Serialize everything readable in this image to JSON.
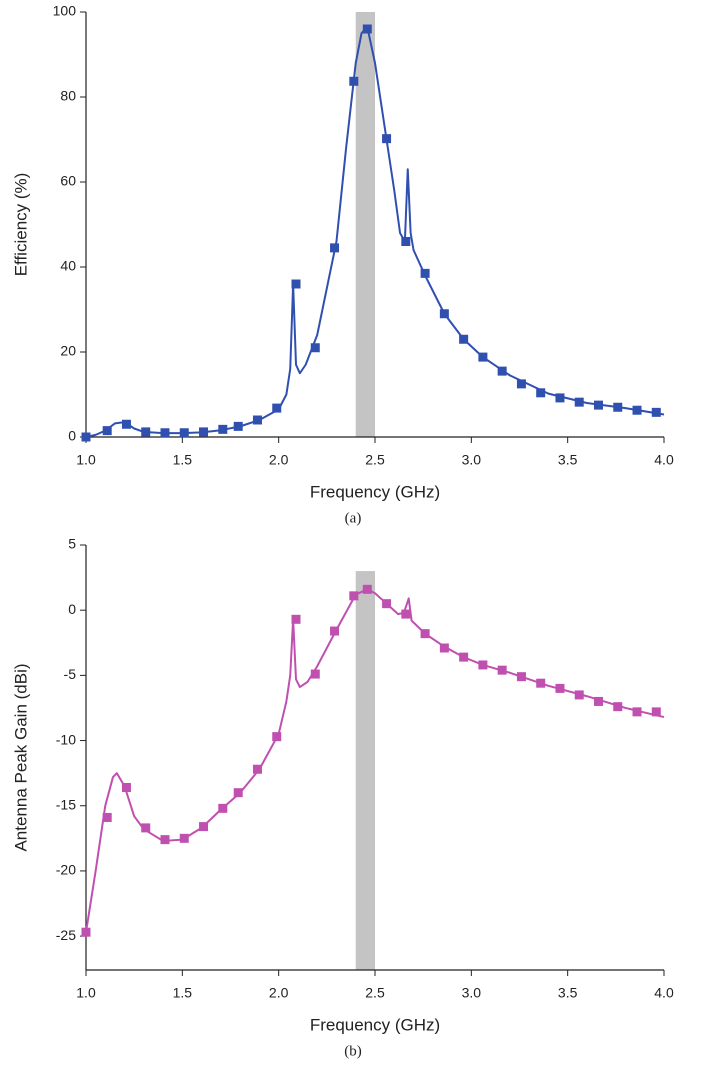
{
  "chart_data": [
    {
      "type": "line",
      "xlabel": "Frequency (GHz)",
      "ylabel": "Efficiency (%)",
      "caption": "(a)",
      "xlim": [
        1.0,
        4.0
      ],
      "ylim": [
        0,
        100
      ],
      "xticks": [
        {
          "value": 1.0,
          "label": "1.0"
        },
        {
          "value": 1.5,
          "label": "1.5"
        },
        {
          "value": 2.0,
          "label": "2.0"
        },
        {
          "value": 2.5,
          "label": "2.5"
        },
        {
          "value": 3.0,
          "label": "3.0"
        },
        {
          "value": 3.5,
          "label": "3.5"
        },
        {
          "value": 4.0,
          "label": "4.0"
        }
      ],
      "yticks": [
        0,
        20,
        40,
        60,
        80,
        100
      ],
      "highlight_x": [
        2.4,
        2.5
      ],
      "highlight_y": [
        0,
        100
      ],
      "highlight_color": "#c4c4c4",
      "series": [
        {
          "style": "line",
          "color": "#3050b0",
          "x": [
            1.0,
            1.05,
            1.1,
            1.15,
            1.2,
            1.25,
            1.3,
            1.4,
            1.5,
            1.6,
            1.7,
            1.8,
            1.9,
            2.0,
            2.04,
            2.06,
            2.075,
            2.09,
            2.11,
            2.14,
            2.2,
            2.3,
            2.35,
            2.4,
            2.43,
            2.46,
            2.5,
            2.56,
            2.6,
            2.63,
            2.655,
            2.67,
            2.685,
            2.7,
            2.76,
            2.86,
            2.96,
            3.06,
            3.2,
            3.4,
            3.6,
            3.8,
            4.0
          ],
          "values": [
            0,
            0.5,
            1.5,
            3.2,
            3.5,
            2,
            1.2,
            0.9,
            0.9,
            1.1,
            1.6,
            2.5,
            4,
            6.5,
            10,
            16,
            36,
            17,
            15,
            17,
            24,
            46,
            68,
            88,
            95,
            96.5,
            88,
            70,
            58,
            48,
            46,
            63,
            48,
            44,
            38,
            29,
            23,
            18.8,
            14.5,
            10.2,
            8,
            6.8,
            5.3
          ]
        },
        {
          "style": "markers",
          "color": "#3050b0",
          "x": [
            1.0,
            1.11,
            1.21,
            1.31,
            1.41,
            1.51,
            1.61,
            1.71,
            1.79,
            1.89,
            1.99,
            2.09,
            2.19,
            2.29,
            2.39,
            2.46,
            2.56,
            2.66,
            2.76,
            2.86,
            2.96,
            3.06,
            3.16,
            3.26,
            3.36,
            3.46,
            3.56,
            3.66,
            3.76,
            3.86,
            3.96
          ],
          "values": [
            0,
            1.5,
            3,
            1.2,
            1,
            1,
            1.2,
            1.8,
            2.5,
            4,
            6.8,
            36,
            21,
            44.5,
            83.7,
            96,
            70.2,
            46,
            38.5,
            29,
            23,
            18.8,
            15.5,
            12.5,
            10.4,
            9.2,
            8.2,
            7.5,
            7,
            6.3,
            5.8
          ]
        }
      ]
    },
    {
      "type": "line",
      "xlabel": "Frequency (GHz)",
      "ylabel": "Antenna Peak Gain (dBi)",
      "caption": "(b)",
      "xlim": [
        1.0,
        4.0
      ],
      "ylim": [
        -27.6,
        5
      ],
      "xticks": [
        {
          "value": 1.0,
          "label": "1.0"
        },
        {
          "value": 1.5,
          "label": "1.5"
        },
        {
          "value": 2.0,
          "label": "2.0"
        },
        {
          "value": 2.5,
          "label": "2.5"
        },
        {
          "value": 3.0,
          "label": "3.0"
        },
        {
          "value": 3.5,
          "label": "3.5"
        },
        {
          "value": 4.0,
          "label": "4.0"
        }
      ],
      "yticks": [
        5,
        0,
        -5,
        -10,
        -15,
        -20,
        -25
      ],
      "highlight_x": [
        2.4,
        2.5
      ],
      "highlight_y": [
        -27.6,
        3
      ],
      "highlight_color": "#c4c4c4",
      "series": [
        {
          "style": "line",
          "color": "#c050b0",
          "x": [
            1.0,
            1.05,
            1.1,
            1.14,
            1.16,
            1.2,
            1.25,
            1.3,
            1.4,
            1.5,
            1.6,
            1.7,
            1.8,
            1.9,
            2.0,
            2.04,
            2.06,
            2.075,
            2.09,
            2.11,
            2.15,
            2.2,
            2.3,
            2.4,
            2.46,
            2.5,
            2.56,
            2.62,
            2.65,
            2.675,
            2.69,
            2.76,
            2.86,
            2.96,
            3.06,
            3.2,
            3.4,
            3.6,
            3.8,
            4.0
          ],
          "values": [
            -24.7,
            -20,
            -15,
            -12.8,
            -12.5,
            -13.5,
            -15.8,
            -16.8,
            -17.7,
            -17.6,
            -16.7,
            -15.3,
            -14,
            -12.2,
            -9.5,
            -7,
            -5,
            -0.7,
            -5.3,
            -5.9,
            -5.5,
            -4.3,
            -1.5,
            1.2,
            1.6,
            1.3,
            0.5,
            -0.3,
            -0.2,
            0.9,
            -0.8,
            -1.8,
            -2.8,
            -3.6,
            -4.2,
            -4.8,
            -5.8,
            -6.6,
            -7.5,
            -8.2
          ]
        },
        {
          "style": "markers",
          "color": "#c050b0",
          "x": [
            1.0,
            1.11,
            1.21,
            1.31,
            1.41,
            1.51,
            1.61,
            1.71,
            1.79,
            1.89,
            1.99,
            2.09,
            2.19,
            2.29,
            2.39,
            2.46,
            2.56,
            2.66,
            2.76,
            2.86,
            2.96,
            3.06,
            3.16,
            3.26,
            3.36,
            3.46,
            3.56,
            3.66,
            3.76,
            3.86,
            3.96
          ],
          "values": [
            -24.7,
            -15.9,
            -13.6,
            -16.7,
            -17.6,
            -17.5,
            -16.6,
            -15.2,
            -14,
            -12.2,
            -9.7,
            -0.7,
            -4.9,
            -1.6,
            1.1,
            1.6,
            0.5,
            -0.3,
            -1.8,
            -2.9,
            -3.6,
            -4.2,
            -4.6,
            -5.1,
            -5.6,
            -6,
            -6.5,
            -7,
            -7.4,
            -7.8,
            -7.8
          ]
        }
      ]
    }
  ]
}
